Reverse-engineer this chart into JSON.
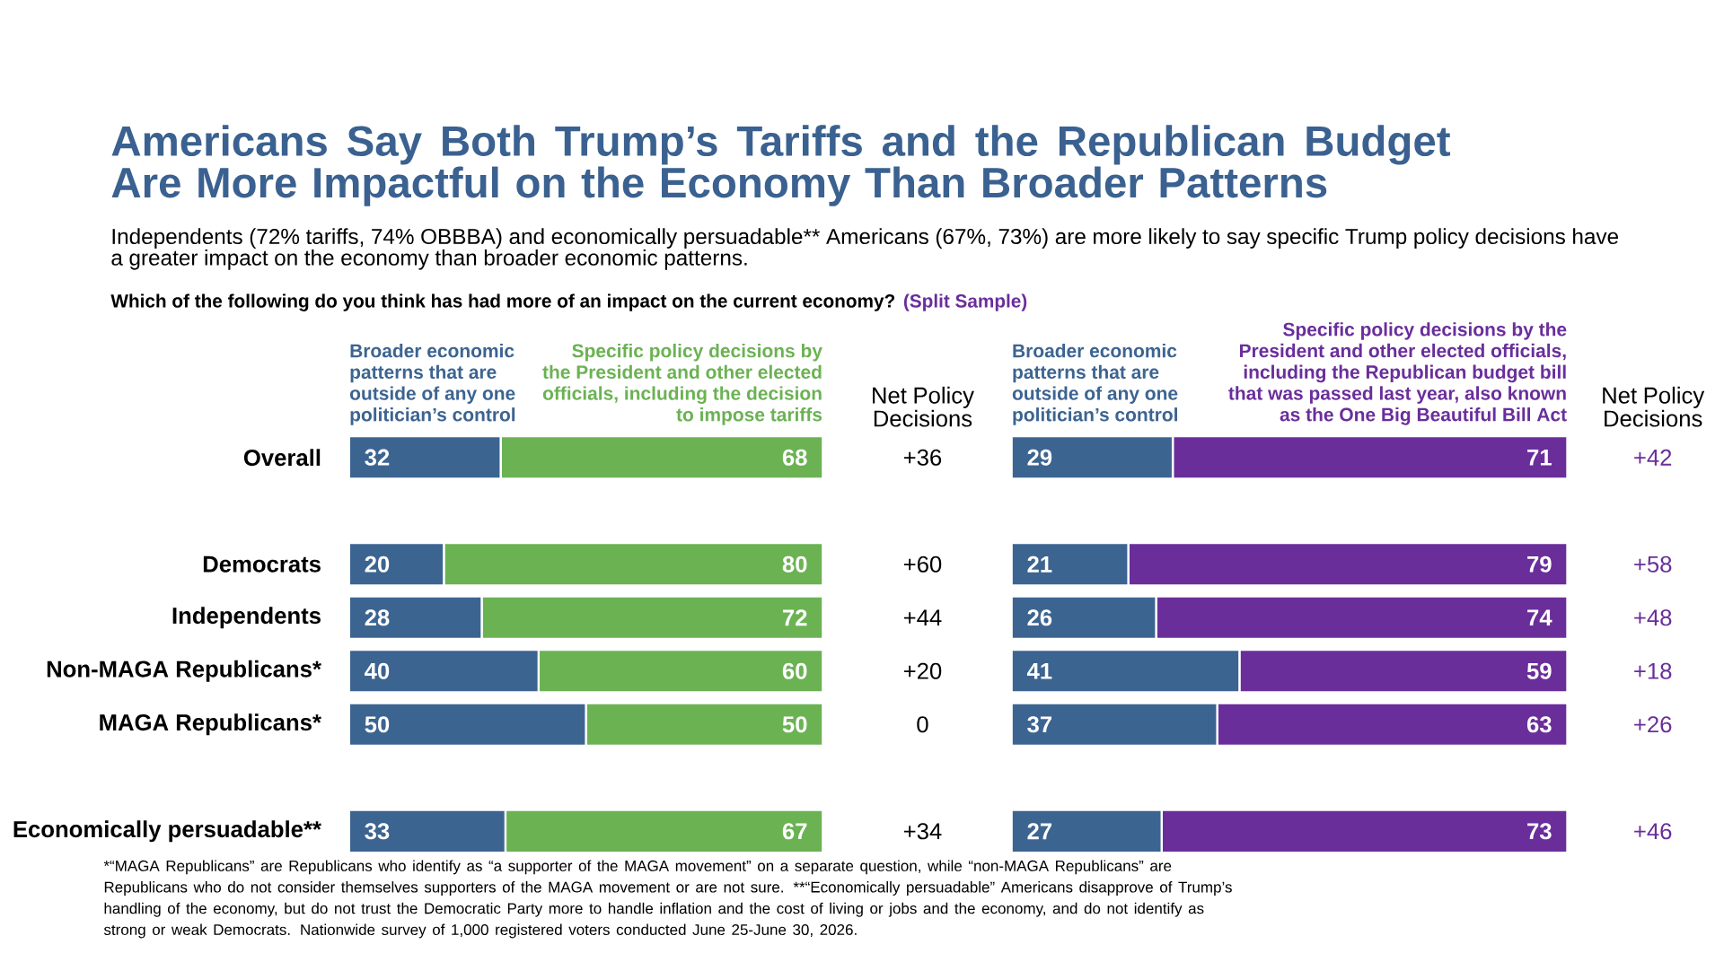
{
  "chart_data": [
    {
      "type": "bar",
      "orientation": "horizontal",
      "stacked": true,
      "data_labels": true,
      "legend": "top",
      "tick_labels": "y",
      "title": "Americans Say Both Trump’s Tariffs and the Republican Budget Are More Impactful on the Economy Than Broader Patterns",
      "subtitle": "Independents (72% tariffs, 74% OBBBA) and economically persuadable** Americans (67%, 73%) are more likely to say specific Trump policy decisions have a greater impact on the economy than broader economic patterns.",
      "categories": [
        "Overall",
        null,
        "Democrats",
        "Independents",
        "Non-MAGA Republicans*",
        "MAGA Republicans*",
        null,
        "Economically persuadable**"
      ],
      "series": [
        {
          "name": "Broader economic patterns that are outside of any one politician’s control",
          "color": "#3c6491",
          "values": [
            32,
            null,
            20,
            28,
            40,
            50,
            null,
            33
          ]
        },
        {
          "name": "Specific policy decisions by the President and other elected officials, including the decision to impose tariffs",
          "color": "#6bb253",
          "values": [
            68,
            null,
            80,
            72,
            60,
            50,
            null,
            67
          ]
        }
      ],
      "annotations": [
        "Which of the following do you think has had more of an impact on the current economy?",
        "(Split Sample)",
        "Net Policy Decisions",
        "+36",
        "+60",
        "+44",
        "+20",
        "0",
        "+34"
      ]
    },
    {
      "type": "bar",
      "orientation": "horizontal",
      "stacked": true,
      "data_labels": true,
      "legend": "top",
      "tick_labels": false,
      "categories": [
        null,
        null,
        null,
        null,
        null,
        null,
        null,
        null
      ],
      "series": [
        {
          "name": "Broader economic patterns that are outside of any one politician’s control",
          "color": "#3c6491",
          "values": [
            29,
            null,
            21,
            26,
            41,
            37,
            null,
            27
          ]
        },
        {
          "name": "Specific policy decisions by the President and other elected officials, including the Republican budget bill that was passed last year, also known as the One Big Beautiful Bill Act",
          "color": "#6a2e9b",
          "values": [
            71,
            null,
            79,
            74,
            59,
            63,
            null,
            73
          ]
        }
      ],
      "annotations": [
        "Net Policy Decisions",
        "*“MAGA Republicans” are Republicans who identify as “a supporter of the MAGA movement” on a separate question, while “non-MAGA Republicans” are Republicans who do not consider themselves supporters of the MAGA movement or are not sure. **“Economically persuadable” Americans disapprove of Trump’s handling of the economy, but do not trust the Democratic Party more to handle inflation and the cost of living or jobs and the economy, and do not identify as strong or weak Democrats. Nationwide survey of 1,000 registered voters conducted June 25-June 30, 2026.",
        "+42",
        "+58",
        "+48",
        "+18",
        "+26",
        "+46"
      ]
    }
  ]
}
